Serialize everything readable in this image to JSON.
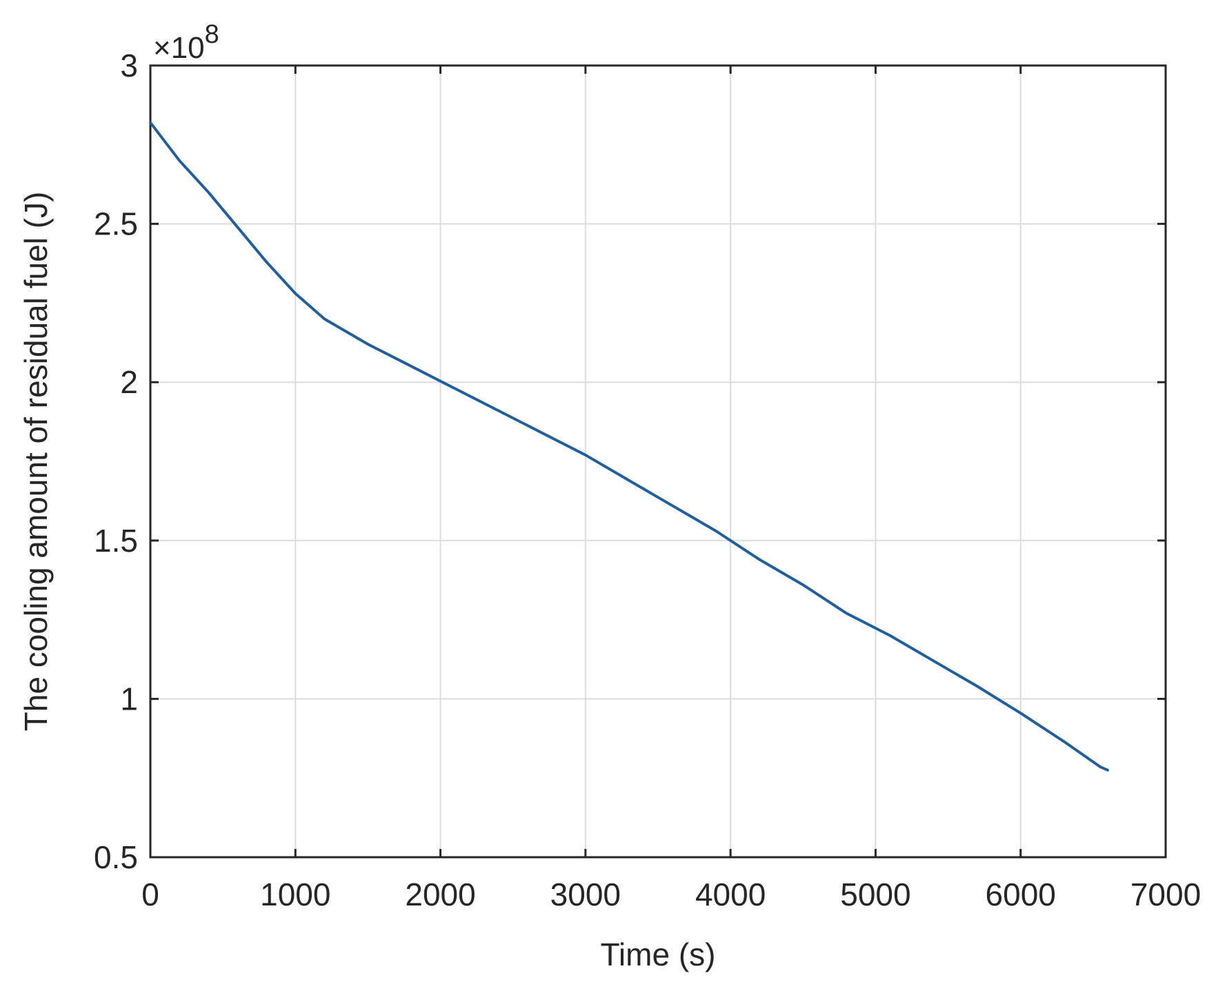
{
  "chart_data": {
    "type": "line",
    "title": "",
    "xlabel": "Time (s)",
    "ylabel": "The cooling amount of residual fuel (J)",
    "y_exponent_label": "×10",
    "y_exponent_power": "8",
    "xlim": [
      0,
      7000
    ],
    "ylim": [
      0.5,
      3
    ],
    "y_scale_factor": 100000000,
    "x_ticks": [
      0,
      1000,
      2000,
      3000,
      4000,
      5000,
      6000,
      7000
    ],
    "x_tick_labels": [
      "0",
      "1000",
      "2000",
      "3000",
      "4000",
      "5000",
      "6000",
      "7000"
    ],
    "y_ticks": [
      0.5,
      1,
      1.5,
      2,
      2.5,
      3
    ],
    "y_tick_labels": [
      "0.5",
      "1",
      "1.5",
      "2",
      "2.5",
      "3"
    ],
    "grid": true,
    "legend": "none",
    "series": [
      {
        "color": "#1f5fa0",
        "x": [
          0,
          200,
          400,
          600,
          800,
          1000,
          1200,
          1500,
          1800,
          2100,
          2400,
          2700,
          3000,
          3300,
          3600,
          3900,
          4200,
          4500,
          4800,
          5100,
          5400,
          5700,
          6000,
          6300,
          6550,
          6600
        ],
        "y": [
          2.82,
          2.7,
          2.6,
          2.49,
          2.38,
          2.28,
          2.2,
          2.12,
          2.05,
          1.98,
          1.91,
          1.84,
          1.77,
          1.69,
          1.61,
          1.53,
          1.44,
          1.36,
          1.27,
          1.2,
          1.12,
          1.04,
          0.955,
          0.865,
          0.785,
          0.775
        ]
      }
    ]
  }
}
